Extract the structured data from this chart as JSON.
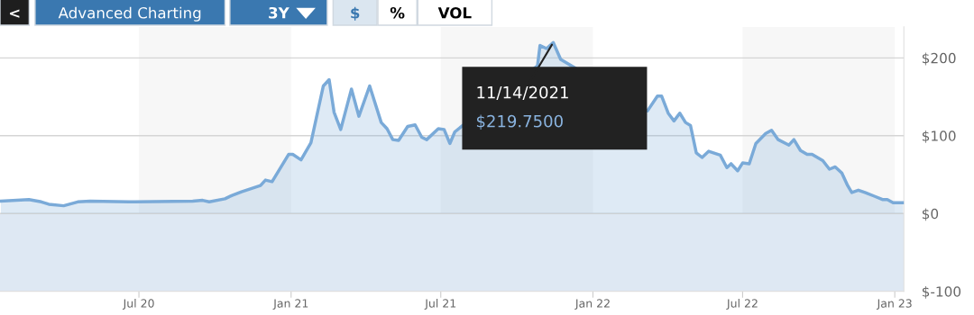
{
  "chart_data": {
    "type": "area",
    "x": [
      "2020-01-16",
      "2020-02-19",
      "2020-03-05",
      "2020-03-14",
      "2020-04-01",
      "2020-04-18",
      "2020-05-03",
      "2020-06-19",
      "2020-06-26",
      "2020-09-04",
      "2020-09-16",
      "2020-09-24",
      "2020-10-13",
      "2020-10-21",
      "2020-11-02",
      "2020-11-25",
      "2020-12-01",
      "2020-12-09",
      "2020-12-29",
      "2021-01-03",
      "2021-01-13",
      "2021-01-25",
      "2021-02-09",
      "2021-02-16",
      "2021-02-22",
      "2021-03-02",
      "2021-03-15",
      "2021-03-24",
      "2021-04-06",
      "2021-04-20",
      "2021-04-27",
      "2021-05-04",
      "2021-05-11",
      "2021-05-22",
      "2021-05-31",
      "2021-06-08",
      "2021-06-14",
      "2021-06-28",
      "2021-07-05",
      "2021-07-12",
      "2021-07-18",
      "2021-10-26",
      "2021-10-29",
      "2021-11-06",
      "2021-11-14",
      "2021-11-23",
      "2022-03-08",
      "2022-03-20",
      "2022-03-25",
      "2022-04-02",
      "2022-04-09",
      "2022-04-16",
      "2022-04-23",
      "2022-04-29",
      "2022-05-06",
      "2022-05-13",
      "2022-05-21",
      "2022-06-04",
      "2022-06-12",
      "2022-06-17",
      "2022-06-25",
      "2022-07-01",
      "2022-07-09",
      "2022-07-17",
      "2022-07-29",
      "2022-08-05",
      "2022-08-13",
      "2022-08-26",
      "2022-09-01",
      "2022-09-09",
      "2022-09-17",
      "2022-09-23",
      "2022-10-06",
      "2022-10-14",
      "2022-10-21",
      "2022-10-29",
      "2022-11-05",
      "2022-11-10",
      "2022-11-18",
      "2022-11-26",
      "2022-12-08",
      "2022-12-17",
      "2022-12-23",
      "2022-12-30",
      "2023-01-11"
    ],
    "series": [
      {
        "color": "#7aaad8",
        "values": [
          16,
          18,
          15,
          12,
          10,
          15,
          16,
          15,
          15,
          16,
          17,
          15,
          19,
          23,
          28,
          36,
          43,
          41,
          76,
          76,
          69,
          91,
          164,
          172,
          130,
          108,
          160,
          125,
          164,
          117,
          109,
          95,
          94,
          112,
          114,
          98,
          95,
          109,
          108,
          90,
          105,
          190,
          216,
          212,
          219.75,
          198,
          132,
          151,
          151,
          129,
          119,
          129,
          117,
          113,
          78,
          72,
          80,
          75,
          59,
          64,
          55,
          65,
          64,
          90,
          103,
          107,
          95,
          88,
          95,
          81,
          76,
          76,
          68,
          57,
          60,
          52,
          36,
          27,
          30,
          27,
          22,
          18,
          18,
          14,
          14
        ]
      }
    ],
    "xlim": [
      "2020-01-15",
      "2023-01-12"
    ],
    "xticks": [
      {
        "value": "2020-07-01",
        "label": "Jul 20"
      },
      {
        "value": "2021-01-01",
        "label": "Jan 21"
      },
      {
        "value": "2021-07-01",
        "label": "Jul 21"
      },
      {
        "value": "2022-01-01",
        "label": "Jan 22"
      },
      {
        "value": "2022-07-01",
        "label": "Jul 22"
      },
      {
        "value": "2023-01-01",
        "label": "Jan 23"
      }
    ],
    "ylim": [
      -100,
      240
    ],
    "yticks": [
      {
        "value": -100,
        "label": "$-100"
      },
      {
        "value": 0,
        "label": "$0"
      },
      {
        "value": 100,
        "label": "$100"
      },
      {
        "value": 200,
        "label": "$200"
      }
    ],
    "grid": "y",
    "bands": [
      {
        "axis": "y",
        "from": -100,
        "to": 0,
        "color": "#dee8f3"
      },
      {
        "axis": "x",
        "from": "2020-07-01",
        "to": "2021-01-01",
        "color": "#f7f7f7"
      },
      {
        "axis": "x",
        "from": "2021-07-01",
        "to": "2022-01-01",
        "color": "#f7f7f7"
      },
      {
        "axis": "x",
        "from": "2022-07-01",
        "to": "2023-01-01",
        "color": "#f7f7f7"
      }
    ],
    "annotations": [
      "<",
      "Advanced Charting",
      "3Y",
      "$",
      "%",
      "VOL",
      {
        "text": "11/14/2021",
        "x": "2021-11-14",
        "y": 219.75
      },
      "$219.7500"
    ]
  }
}
